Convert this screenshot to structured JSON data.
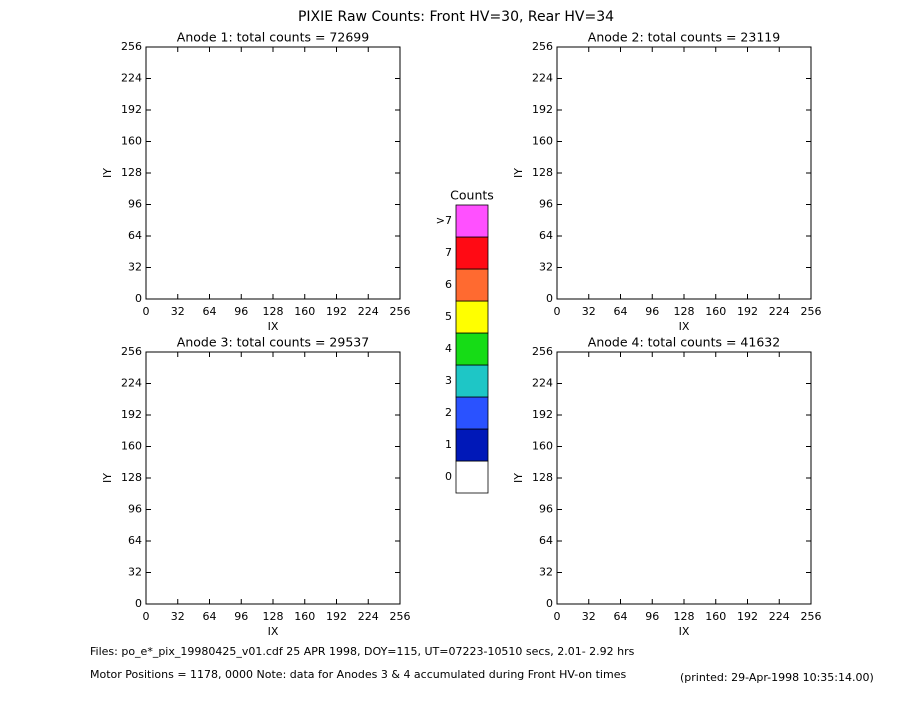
{
  "title": "PIXIE Raw Counts:  Front HV=30, Rear HV=34",
  "chart_data": [
    {
      "type": "heatmap",
      "title": "Anode 1: total counts = 72699",
      "xlabel": "IX",
      "ylabel": "IY",
      "xlim": [
        0,
        256
      ],
      "ylim": [
        0,
        256
      ],
      "xticks": [
        0,
        32,
        64,
        96,
        128,
        160,
        192,
        224,
        256
      ],
      "yticks": [
        0,
        32,
        64,
        96,
        128,
        160,
        192,
        224,
        256
      ]
    },
    {
      "type": "heatmap",
      "title": "Anode 2: total counts = 23119",
      "xlabel": "IX",
      "ylabel": "IY",
      "xlim": [
        0,
        256
      ],
      "ylim": [
        0,
        256
      ],
      "xticks": [
        0,
        32,
        64,
        96,
        128,
        160,
        192,
        224,
        256
      ],
      "yticks": [
        0,
        32,
        64,
        96,
        128,
        160,
        192,
        224,
        256
      ]
    },
    {
      "type": "heatmap",
      "title": "Anode 3: total counts = 29537",
      "xlabel": "IX",
      "ylabel": "IY",
      "xlim": [
        0,
        256
      ],
      "ylim": [
        0,
        256
      ],
      "xticks": [
        0,
        32,
        64,
        96,
        128,
        160,
        192,
        224,
        256
      ],
      "yticks": [
        0,
        32,
        64,
        96,
        128,
        160,
        192,
        224,
        256
      ]
    },
    {
      "type": "heatmap",
      "title": "Anode 4: total counts = 41632",
      "xlabel": "IX",
      "ylabel": "IY",
      "xlim": [
        0,
        256
      ],
      "ylim": [
        0,
        256
      ],
      "xticks": [
        0,
        32,
        64,
        96,
        128,
        160,
        192,
        224,
        256
      ],
      "yticks": [
        0,
        32,
        64,
        96,
        128,
        160,
        192,
        224,
        256
      ]
    },
    {
      "type": "colorbar",
      "title": "Counts",
      "categories": [
        "0",
        "1",
        "2",
        "3",
        "4",
        "5",
        "6",
        "7",
        ">7"
      ],
      "colors": [
        "#ffffff",
        "#0018b8",
        "#2a52ff",
        "#1ec6c6",
        "#16dc16",
        "#ffff00",
        "#ff6a30",
        "#ff0a14",
        "#ff50ff"
      ]
    }
  ],
  "footer": {
    "files": "Files: po_e*_pix_19980425_v01.cdf    25 APR 1998, DOY=115, UT=07223-10510 secs,  2.01- 2.92 hrs",
    "motor": "Motor Positions = 1178, 0000   Note: data for Anodes 3 & 4 accumulated during Front HV-on times",
    "printed": "(printed: 29-Apr-1998 10:35:14.00)"
  }
}
